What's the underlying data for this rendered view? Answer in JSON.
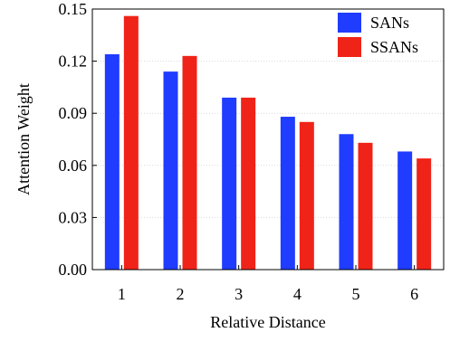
{
  "chart_data": {
    "type": "bar",
    "categories": [
      "1",
      "2",
      "3",
      "4",
      "5",
      "6"
    ],
    "series": [
      {
        "name": "SANs",
        "color": "#1f3cff",
        "values": [
          0.124,
          0.114,
          0.099,
          0.088,
          0.078,
          0.068
        ]
      },
      {
        "name": "SSANs",
        "color": "#f02318",
        "values": [
          0.146,
          0.123,
          0.099,
          0.085,
          0.073,
          0.064
        ]
      }
    ],
    "title": "",
    "xlabel": "Relative Distance",
    "ylabel": "Attention Weight",
    "ylim": [
      0,
      0.15
    ],
    "yticks": [
      "0.00",
      "0.03",
      "0.06",
      "0.09",
      "0.12",
      "0.15"
    ],
    "grid": true,
    "legend_position": "top-right"
  }
}
